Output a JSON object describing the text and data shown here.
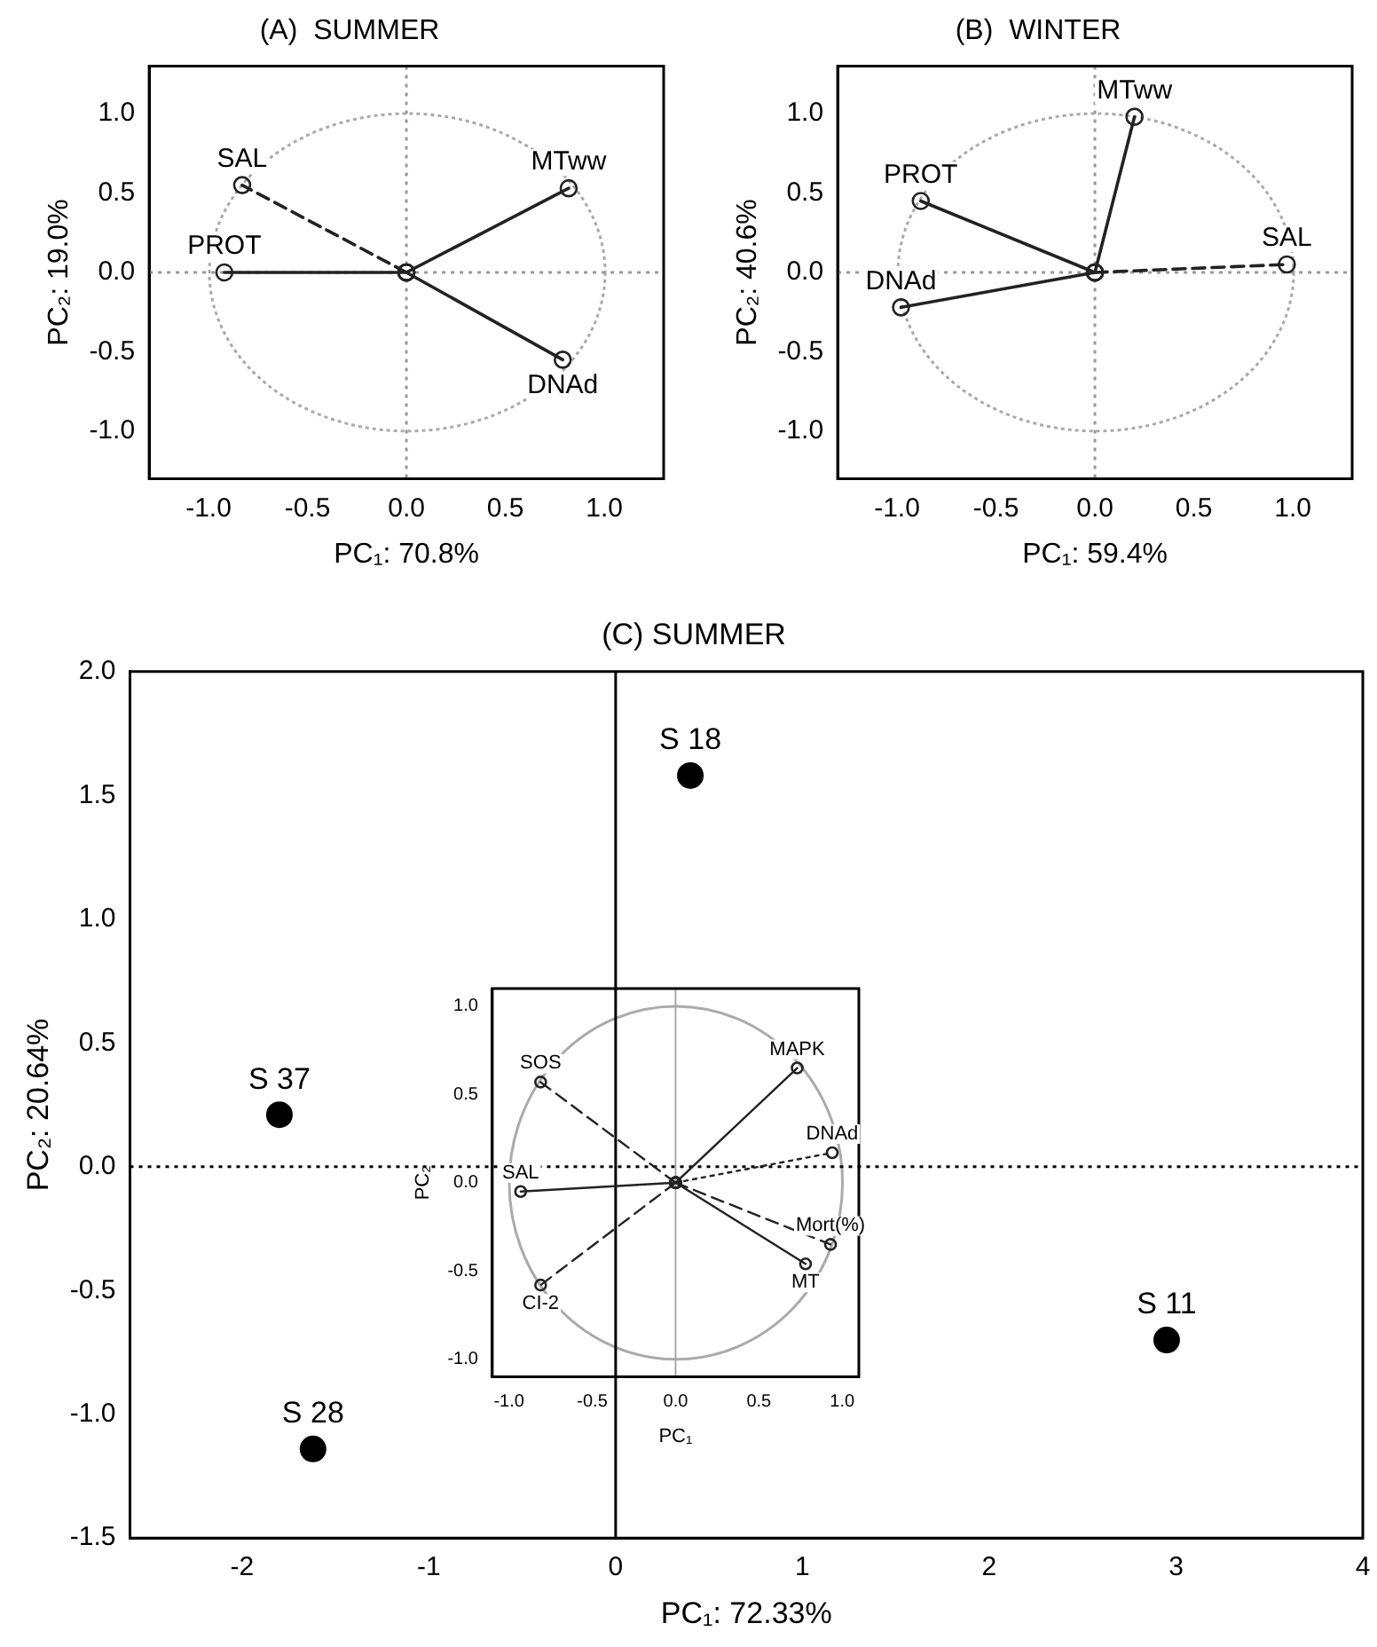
{
  "chart_data": [
    {
      "type": "line",
      "title": "(A)  SUMMER",
      "xlabel": "PC₁: 70.8%",
      "ylabel": "PC₂: 19.0%",
      "xlim": [
        -1.3,
        1.3
      ],
      "ylim": [
        -1.3,
        1.3
      ],
      "xticks": [
        {
          "value": -1,
          "label": "-1.0"
        },
        {
          "value": -0.5,
          "label": "-0.5"
        },
        {
          "value": 0,
          "label": "0.0"
        },
        {
          "value": 0.5,
          "label": "0.5"
        },
        {
          "value": 1,
          "label": "1.0"
        }
      ],
      "yticks": [
        {
          "value": -1,
          "label": "-1.0"
        },
        {
          "value": -0.5,
          "label": "-0.5"
        },
        {
          "value": 0,
          "label": "0.0"
        },
        {
          "value": 0.5,
          "label": "0.5"
        },
        {
          "value": 1,
          "label": "1.0"
        }
      ],
      "grid": false,
      "legend": false,
      "ref_lines": [
        {
          "axis": "x",
          "value": 0,
          "color": "#999999",
          "line_style": "dotted"
        },
        {
          "axis": "y",
          "value": 0,
          "color": "#999999",
          "line_style": "dotted"
        }
      ],
      "series": [
        {
          "name": "SAL",
          "color": "#222222",
          "line_style": "dashed",
          "marker": "circle",
          "x": [
            0,
            -0.83
          ],
          "values": [
            0,
            0.55
          ]
        },
        {
          "name": "PROT",
          "color": "#222222",
          "line_style": "solid",
          "marker": "circle",
          "x": [
            0,
            -0.92
          ],
          "values": [
            0,
            0
          ]
        },
        {
          "name": "MTww",
          "color": "#222222",
          "line_style": "solid",
          "marker": "circle",
          "x": [
            0,
            0.82
          ],
          "values": [
            0,
            0.53
          ]
        },
        {
          "name": "DNAd",
          "color": "#222222",
          "line_style": "solid",
          "marker": "circle",
          "x": [
            0,
            0.79
          ],
          "values": [
            0,
            -0.55
          ]
        }
      ]
    },
    {
      "type": "line",
      "title": "(B)  WINTER",
      "xlabel": "PC₁: 59.4%",
      "ylabel": "PC₂: 40.6%",
      "xlim": [
        -1.3,
        1.3
      ],
      "ylim": [
        -1.3,
        1.3
      ],
      "xticks": [
        {
          "value": -1,
          "label": "-1.0"
        },
        {
          "value": -0.5,
          "label": "-0.5"
        },
        {
          "value": 0,
          "label": "0.0"
        },
        {
          "value": 0.5,
          "label": "0.5"
        },
        {
          "value": 1,
          "label": "1.0"
        }
      ],
      "yticks": [
        {
          "value": -1,
          "label": "-1.0"
        },
        {
          "value": -0.5,
          "label": "-0.5"
        },
        {
          "value": 0,
          "label": "0.0"
        },
        {
          "value": 0.5,
          "label": "0.5"
        },
        {
          "value": 1,
          "label": "1.0"
        }
      ],
      "grid": false,
      "legend": false,
      "ref_lines": [
        {
          "axis": "x",
          "value": 0,
          "color": "#999999",
          "line_style": "dotted"
        },
        {
          "axis": "y",
          "value": 0,
          "color": "#999999",
          "line_style": "dotted"
        }
      ],
      "series": [
        {
          "name": "MTww",
          "color": "#222222",
          "line_style": "solid",
          "marker": "circle",
          "x": [
            0,
            0.2
          ],
          "values": [
            0,
            0.98
          ]
        },
        {
          "name": "PROT",
          "color": "#222222",
          "line_style": "solid",
          "marker": "circle",
          "x": [
            0,
            -0.88
          ],
          "values": [
            0,
            0.45
          ]
        },
        {
          "name": "SAL",
          "color": "#222222",
          "line_style": "dashed",
          "marker": "circle",
          "x": [
            0,
            0.97
          ],
          "values": [
            0,
            0.05
          ]
        },
        {
          "name": "DNAd",
          "color": "#222222",
          "line_style": "solid",
          "marker": "circle",
          "x": [
            0,
            -0.98
          ],
          "values": [
            0,
            -0.22
          ]
        }
      ]
    },
    {
      "type": "scatter",
      "title": "(C) SUMMER",
      "xlabel": "PC₁: 72.33%",
      "ylabel": "PC₂: 20.64%",
      "xlim": [
        -2.6,
        4
      ],
      "ylim": [
        -1.5,
        2
      ],
      "xticks": [
        -2,
        -1,
        0,
        1,
        2,
        3,
        4
      ],
      "yticks": [
        {
          "value": -1.5,
          "label": "-1.5"
        },
        {
          "value": -1,
          "label": "-1.0"
        },
        {
          "value": -0.5,
          "label": "-0.5"
        },
        {
          "value": 0,
          "label": "0.0"
        },
        {
          "value": 0.5,
          "label": "0.5"
        },
        {
          "value": 1,
          "label": "1.0"
        },
        {
          "value": 1.5,
          "label": "1.5"
        },
        {
          "value": 2,
          "label": "2.0"
        }
      ],
      "grid": false,
      "legend": false,
      "ref_lines": [
        {
          "axis": "x",
          "value": 0,
          "color": "#000000",
          "line_style": "solid"
        },
        {
          "axis": "y",
          "value": 0,
          "color": "#000000",
          "line_style": "dotted"
        }
      ],
      "series": [
        {
          "color": "#000000",
          "marker": "circle",
          "x": [
            0.4,
            -1.8,
            -1.62,
            2.95
          ],
          "values": [
            1.58,
            0.21,
            -1.14,
            -0.7
          ]
        }
      ],
      "annotations": [
        {
          "text": "S 18",
          "x": 0.4,
          "y": 1.58
        },
        {
          "text": "S 37",
          "x": -1.8,
          "y": 0.21
        },
        {
          "text": "S 28",
          "x": -1.62,
          "y": -1.14
        },
        {
          "text": "S 11",
          "x": 2.95,
          "y": -0.7
        }
      ]
    },
    {
      "type": "line",
      "xlabel": "PC₁",
      "ylabel": "PC₂",
      "xlim": [
        -1.1,
        1.1
      ],
      "ylim": [
        -1.1,
        1.1
      ],
      "xticks": [
        {
          "value": -1,
          "label": "-1.0"
        },
        {
          "value": -0.5,
          "label": "-0.5"
        },
        {
          "value": 0,
          "label": "0.0"
        },
        {
          "value": 0.5,
          "label": "0.5"
        },
        {
          "value": 1,
          "label": "1.0"
        }
      ],
      "yticks": [
        {
          "value": -1,
          "label": "-1.0"
        },
        {
          "value": -0.5,
          "label": "-0.5"
        },
        {
          "value": 0,
          "label": "0.0"
        },
        {
          "value": 0.5,
          "label": "0.5"
        },
        {
          "value": 1,
          "label": "1.0"
        }
      ],
      "grid": false,
      "legend": false,
      "ref_lines": [
        {
          "axis": "x",
          "value": 0,
          "color": "#aaaaaa",
          "line_style": "solid"
        }
      ],
      "series": [
        {
          "name": "SOS",
          "color": "#222222",
          "line_style": "dashed",
          "marker": "circle",
          "x": [
            0,
            -0.81
          ],
          "values": [
            0,
            0.57
          ]
        },
        {
          "name": "MAPK",
          "color": "#222222",
          "line_style": "solid",
          "marker": "circle",
          "x": [
            0,
            0.73
          ],
          "values": [
            0,
            0.65
          ]
        },
        {
          "name": "DNAd",
          "color": "#222222",
          "line_style": "dotted",
          "marker": "circle",
          "x": [
            0,
            0.94
          ],
          "values": [
            0,
            0.17
          ]
        },
        {
          "name": "SAL",
          "color": "#222222",
          "line_style": "solid",
          "marker": "circle",
          "x": [
            0,
            -0.93
          ],
          "values": [
            0,
            -0.05
          ]
        },
        {
          "name": "Mort(%)",
          "color": "#222222",
          "line_style": "dashed",
          "marker": "circle",
          "x": [
            0,
            0.93
          ],
          "values": [
            0,
            -0.35
          ]
        },
        {
          "name": "MT",
          "color": "#222222",
          "line_style": "solid",
          "marker": "circle",
          "x": [
            0,
            0.78
          ],
          "values": [
            0,
            -0.46
          ]
        },
        {
          "name": "CI-2",
          "color": "#222222",
          "line_style": "dashed",
          "marker": "circle",
          "x": [
            0,
            -0.81
          ],
          "values": [
            0,
            -0.58
          ]
        }
      ]
    }
  ]
}
